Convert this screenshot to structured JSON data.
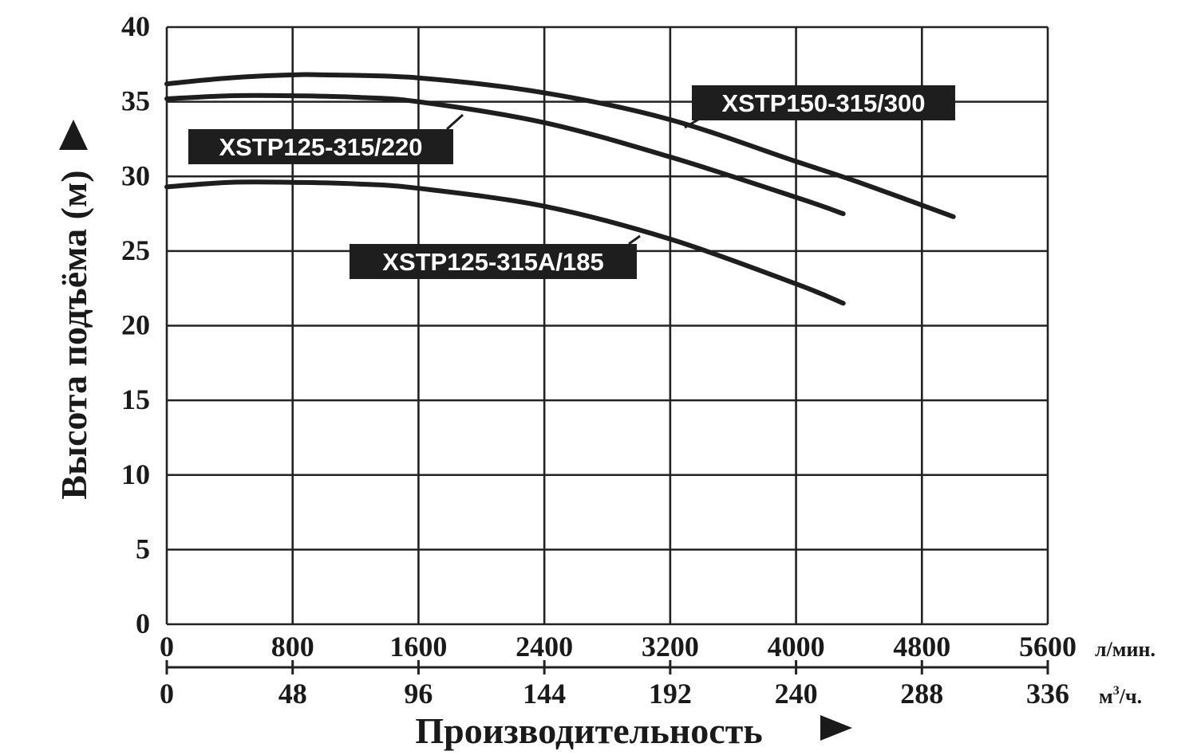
{
  "chart_data": {
    "type": "line",
    "title": "",
    "xlabel": "Производительность",
    "ylabel": "Высота подъёма (м)",
    "xlim": [
      0,
      5600
    ],
    "ylim": [
      0,
      40
    ],
    "grid": true,
    "x_ticks": [
      "0",
      "800",
      "1600",
      "2400",
      "3200",
      "4000",
      "4800",
      "5600"
    ],
    "x_unit": "л/мин.",
    "x2_ticks": [
      "0",
      "48",
      "96",
      "144",
      "192",
      "240",
      "288",
      "336"
    ],
    "x2_unit_main": "м",
    "x2_unit_sup": "3",
    "x2_unit_tail": "/ч.",
    "y_ticks": [
      "0",
      "5",
      "10",
      "15",
      "20",
      "25",
      "30",
      "35",
      "40"
    ],
    "series": [
      {
        "name": "XSTP150-315/300",
        "x": [
          0,
          400,
          800,
          1000,
          1600,
          2400,
          3200,
          4000,
          4400,
          5000
        ],
        "y": [
          36.2,
          36.6,
          36.8,
          36.8,
          36.6,
          35.6,
          33.8,
          31.0,
          29.6,
          27.3
        ]
      },
      {
        "name": "XSTP125-315/220",
        "x": [
          0,
          400,
          800,
          1200,
          1600,
          2400,
          3200,
          4000,
          4300
        ],
        "y": [
          35.2,
          35.4,
          35.4,
          35.3,
          35.0,
          33.6,
          31.3,
          28.6,
          27.5
        ]
      },
      {
        "name": "XSTP125-315A/185",
        "x": [
          0,
          400,
          800,
          1200,
          1600,
          2400,
          3200,
          4000,
          4300
        ],
        "y": [
          29.3,
          29.6,
          29.6,
          29.5,
          29.2,
          28.0,
          25.8,
          22.8,
          21.5
        ]
      }
    ]
  }
}
